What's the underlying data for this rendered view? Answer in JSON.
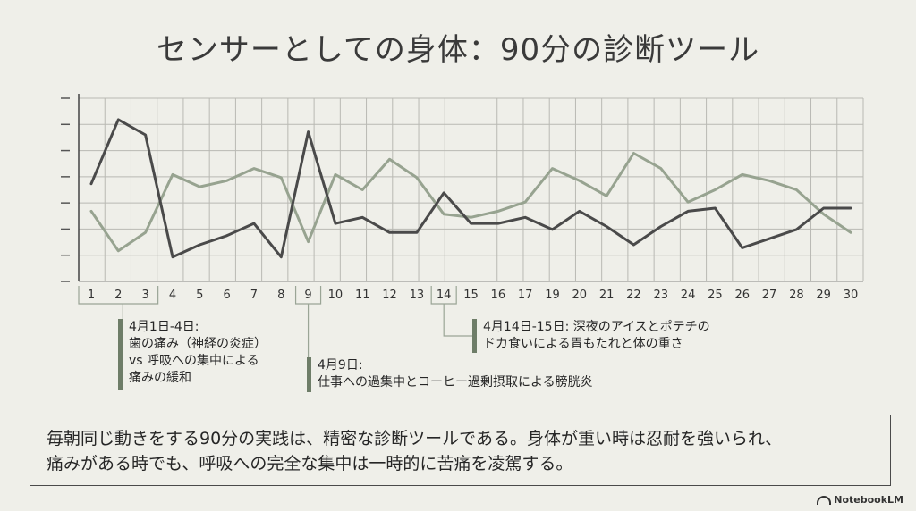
{
  "title": "センサーとしての身体：90分の診断ツール",
  "chart_data": {
    "type": "line",
    "x": [
      1,
      2,
      3,
      4,
      5,
      6,
      7,
      8,
      9,
      10,
      11,
      12,
      13,
      14,
      15,
      16,
      17,
      19,
      20,
      21,
      22,
      23,
      24,
      25,
      26,
      27,
      28,
      29,
      30
    ],
    "xlabel": "",
    "ylabel": "",
    "grid": true,
    "series": [
      {
        "color": "#4a4a4a",
        "values": [
          5.2,
          7.3,
          6.8,
          2.8,
          3.2,
          3.5,
          3.9,
          2.8,
          6.9,
          3.9,
          4.1,
          3.6,
          3.6,
          4.9,
          3.9,
          3.9,
          4.1,
          3.7,
          4.3,
          3.8,
          3.2,
          3.8,
          4.3,
          4.4,
          3.1,
          3.4,
          3.7,
          4.4,
          4.4
        ]
      },
      {
        "color": "#97a390",
        "values": [
          4.3,
          3.0,
          3.6,
          5.5,
          5.1,
          5.3,
          5.7,
          5.4,
          3.3,
          5.5,
          5.0,
          6.0,
          5.4,
          4.2,
          4.1,
          4.3,
          4.6,
          5.7,
          5.3,
          4.8,
          6.2,
          5.7,
          4.6,
          5.0,
          5.5,
          5.3,
          5.0,
          4.2,
          3.6
        ]
      }
    ]
  },
  "annotations": [
    {
      "lines": [
        "4月1日-4日:",
        "歯の痛み（神経の炎症）",
        "vs 呼吸への集中による",
        "痛みの緩和"
      ]
    },
    {
      "lines": [
        "4月9日:",
        "仕事への過集中とコーヒー過剰摂取による膀胱炎"
      ]
    },
    {
      "lines": [
        "4月14日-15日: 深夜のアイスとポテチの",
        "ドカ食いによる胃もたれと体の重さ"
      ]
    }
  ],
  "summary": {
    "line1": "毎朝同じ動きをする90分の実践は、精密な診断ツールである。身体が重い時は忍耐を強いられ、",
    "line2": "痛みがある時でも、呼吸への完全な集中は一時的に苦痛を凌駕する。"
  },
  "brand": "NotebookLM"
}
